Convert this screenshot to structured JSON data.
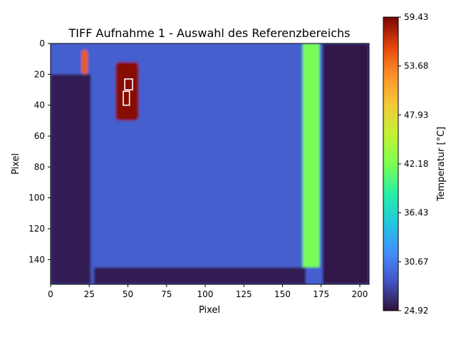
{
  "chart_data": {
    "type": "heatmap",
    "title": "TIFF Aufnahme 1 - Auswahl des Referenzbereichs",
    "xlabel": "Pixel",
    "ylabel": "Pixel",
    "xlim": [
      0,
      206
    ],
    "ylim": [
      156,
      0
    ],
    "x_ticks": [
      0,
      25,
      50,
      75,
      100,
      125,
      150,
      175,
      200
    ],
    "y_ticks": [
      0,
      20,
      40,
      60,
      80,
      100,
      120,
      140
    ],
    "colormap": "turbo",
    "colorbar": {
      "label": "Temperatur [°C]",
      "min": 24.92,
      "max": 59.43,
      "ticks": [
        "24.92",
        "30.67",
        "36.43",
        "42.18",
        "47.93",
        "53.68",
        "59.43"
      ]
    },
    "regions": [
      {
        "name": "background-surface",
        "temperature": 29.0
      },
      {
        "name": "hot-spot",
        "x_range": [
          42,
          57
        ],
        "y_range": [
          12,
          50
        ],
        "temperature": 59.0
      },
      {
        "name": "hot-strip-left",
        "x_range": [
          20,
          24
        ],
        "y_range": [
          4,
          20
        ],
        "temperature": 55.0
      },
      {
        "name": "vertical-warm-line",
        "x_range": [
          163,
          174
        ],
        "y_range": [
          0,
          145
        ],
        "temperature": 42.0
      },
      {
        "name": "dark-left-band",
        "x_range": [
          0,
          26
        ],
        "y_range": [
          20,
          156
        ],
        "temperature": 25.5
      },
      {
        "name": "dark-bottom-band",
        "x_range": [
          28,
          165
        ],
        "y_range": [
          145,
          156
        ],
        "temperature": 25.5
      },
      {
        "name": "dark-right-band",
        "x_range": [
          176,
          206
        ],
        "y_range": [
          0,
          156
        ],
        "temperature": 25.3
      }
    ],
    "reference_rectangles": [
      {
        "x": 48,
        "y": 23,
        "width": 5,
        "height": 7
      },
      {
        "x": 47,
        "y": 31,
        "width": 4,
        "height": 9
      }
    ]
  }
}
